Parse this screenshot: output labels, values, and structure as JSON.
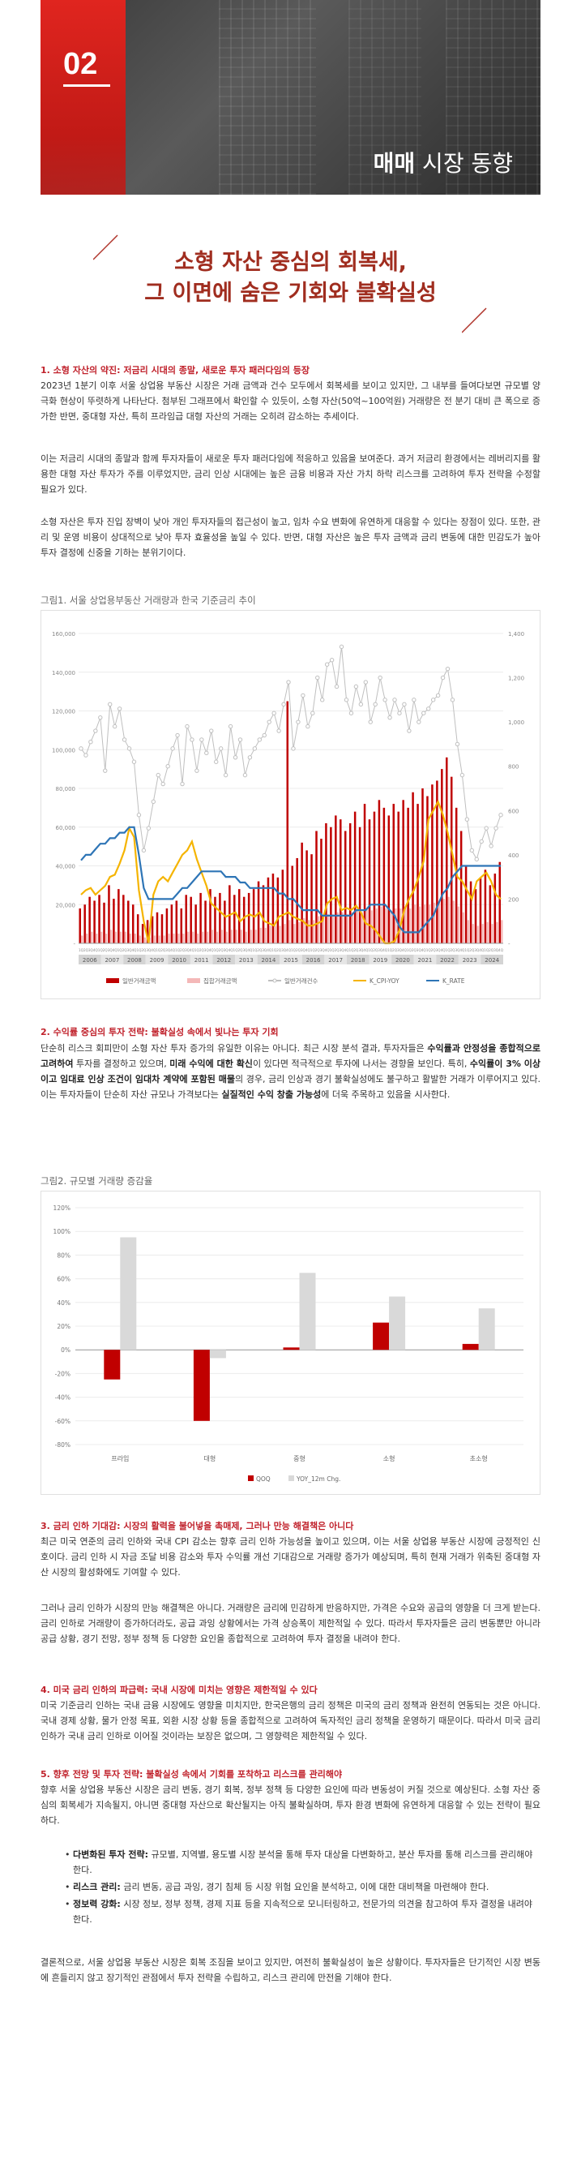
{
  "hero": {
    "number": "02",
    "title_bold": "매매",
    "title_rest": " 시장 동향"
  },
  "title": {
    "line1": "소형 자산 중심의 회복세,",
    "line2": "그 이면에 숨은 기회와 불확실성"
  },
  "s1": {
    "heading": "1. 소형 자산의 약진: 저금리 시대의 종말, 새로운 투자 패러다임의 등장",
    "p1": "2023년 1분기 이후 서울 상업용 부동산 시장은 거래 금액과 건수 모두에서 회복세를 보이고 있지만, 그 내부를 들여다보면 규모별 양극화 현상이 뚜렷하게 나타난다. 첨부된 그래프에서 확인할 수 있듯이, 소형 자산(50억~100억원) 거래량은 전 분기 대비 큰 폭으로 증가한 반면, 중대형 자산, 특히 프라임급 대형 자산의 거래는 오히려 감소하는 추세이다.",
    "p2": "이는 저금리 시대의 종말과 함께 투자자들이 새로운 투자 패러다임에 적응하고 있음을 보여준다. 과거 저금리 환경에서는 레버리지를 활용한 대형 자산 투자가 주를 이루었지만, 금리 인상 시대에는 높은 금융 비용과 자산 가치 하락 리스크를 고려하여 투자 전략을 수정할 필요가 있다.",
    "p3": "소형 자산은 투자 진입 장벽이 낮아 개인 투자자들의 접근성이 높고, 임차 수요 변화에 유연하게 대응할 수 있다는 장점이 있다. 또한, 관리 및 운영 비용이 상대적으로 낮아 투자 효율성을 높일 수 있다. 반면, 대형 자산은 높은 투자 금액과 금리 변동에 대한 민감도가 높아 투자 결정에 신중을 기하는 분위기이다."
  },
  "fig1": {
    "caption": "그림1. 서울 상업용부동산 거래량과 한국 기준금리 추이"
  },
  "s2": {
    "heading": "2. 수익률 중심의 투자 전략: 불확실성 속에서 빛나는 투자 기회",
    "p1a": "단순히 리스크 회피만이 소형 자산 투자 증가의 유일한 이유는 아니다. 최근 시장 분석 결과, 투자자들은 ",
    "p1b": "수익률과 안정성을 종합적으로 고려하여",
    "p1c": " 투자를 결정하고 있으며, ",
    "p1d": "미래 수익에 대한 확신",
    "p1e": "이 있다면 적극적으로 투자에 나서는 경향을 보인다. 특히, ",
    "p1f": "수익률이 3% 이상이고 임대료 인상 조건이 임대차 계약에 포함된 매물",
    "p1g": "의 경우, 금리 인상과 경기 불확실성에도 불구하고 활발한 거래가 이루어지고 있다. 이는 투자자들이 단순히 자산 규모나 가격보다는 ",
    "p1h": "실질적인 수익 창출 가능성",
    "p1i": "에 더욱 주목하고 있음을 시사한다."
  },
  "fig2": {
    "caption": "그림2. 규모별 거래량 증감율"
  },
  "s3": {
    "heading": "3. 금리 인하 기대감: 시장의 활력을 불어넣을 촉매제, 그러나 만능 해결책은 아니다",
    "p1": "최근 미국 연준의 금리 인하와 국내 CPI 감소는 향후 금리 인하 가능성을 높이고 있으며, 이는 서울 상업용 부동산 시장에 긍정적인 신호이다. 금리 인하 시 자금 조달 비용 감소와 투자 수익률 개선 기대감으로 거래량 증가가 예상되며, 특히 현재 거래가 위축된 중대형 자산 시장의 활성화에도 기여할 수 있다.",
    "p2": "그러나 금리 인하가 시장의 만능 해결책은 아니다. 거래량은 금리에 민감하게 반응하지만, 가격은 수요와 공급의 영향을 더 크게 받는다. 금리 인하로 거래량이 증가하더라도, 공급 과잉 상황에서는 가격 상승폭이 제한적일 수 있다. 따라서 투자자들은 금리 변동뿐만 아니라 공급 상황, 경기 전망, 정부 정책 등 다양한 요인을 종합적으로 고려하여 투자 결정을 내려야 한다."
  },
  "s4": {
    "heading": "4. 미국 금리 인하의 파급력: 국내 시장에 미치는 영향은 제한적일 수 있다",
    "p1": "미국 기준금리 인하는 국내 금융 시장에도 영향을 미치지만, 한국은행의 금리 정책은 미국의 금리 정책과 완전히 연동되는 것은 아니다. 국내 경제 상황, 물가 안정 목표, 외환 시장 상황 등을 종합적으로 고려하여 독자적인 금리 정책을 운영하기 때문이다. 따라서 미국 금리 인하가 국내 금리 인하로 이어질 것이라는 보장은 없으며, 그 영향력은 제한적일 수 있다."
  },
  "s5": {
    "heading": "5. 향후 전망 및 투자 전략: 불확실성 속에서 기회를 포착하고 리스크를 관리해야",
    "p1": "향후 서울 상업용 부동산 시장은 금리 변동, 경기 회복, 정부 정책 등 다양한 요인에 따라 변동성이 커질 것으로 예상된다. 소형 자산 중심의 회복세가 지속될지, 아니면 중대형 자산으로 확산될지는 아직 불확실하며, 투자 환경 변화에 유연하게 대응할 수 있는 전략이 필요하다.",
    "bullets": [
      {
        "k": "다변화된 투자 전략:",
        "t": " 규모별, 지역별, 용도별 시장 분석을 통해 투자 대상을 다변화하고, 분산 투자를 통해 리스크를 관리해야 한다."
      },
      {
        "k": "리스크 관리:",
        "t": " 금리 변동, 공급 과잉, 경기 침체 등 시장 위험 요인을 분석하고, 이에 대한 대비책을 마련해야 한다."
      },
      {
        "k": "정보력 강화:",
        "t": " 시장 정보, 정부 정책, 경제 지표 등을 지속적으로 모니터링하고, 전문가의 의견을 참고하여 투자 결정을 내려야 한다."
      }
    ],
    "p2": "결론적으로, 서울 상업용 부동산 시장은 회복 조짐을 보이고 있지만, 여전히 불확실성이 높은 상황이다. 투자자들은 단기적인 시장 변동에 흔들리지 않고 장기적인 관점에서 투자 전략을 수립하고, 리스크 관리에 만전을 기해야 한다."
  },
  "chart_data": [
    {
      "type": "bar+line",
      "title": "그림1. 서울 상업용부동산 거래량과 한국 기준금리 추이",
      "y_left": {
        "range": [
          0,
          160000
        ],
        "ticks": [
          "-",
          "20,000",
          "40,000",
          "60,000",
          "80,000",
          "100,000",
          "120,000",
          "140,000",
          "160,000"
        ]
      },
      "y_right": {
        "range": [
          0,
          1400
        ],
        "ticks": [
          "-",
          "200",
          "400",
          "600",
          "800",
          "1,000",
          "1,200",
          "1,400"
        ]
      },
      "years": [
        "2006",
        "2007",
        "2008",
        "2009",
        "2010",
        "2011",
        "2012",
        "2013",
        "2014",
        "2015",
        "2016",
        "2017",
        "2018",
        "2019",
        "2020",
        "2021",
        "2022",
        "2023",
        "2024"
      ],
      "legend": [
        "일반거래금액",
        "집합거래금액",
        "일반거래건수",
        "K_CPI-YOY",
        "K_RATE"
      ],
      "colors": [
        "#c00000",
        "#f4b8b8",
        "#bfbfbf",
        "#f5b400",
        "#2e75b6"
      ],
      "series": [
        {
          "name": "일반거래금액",
          "kind": "bar",
          "values": [
            18000,
            20000,
            24000,
            22000,
            25000,
            21000,
            30000,
            23000,
            28000,
            25000,
            22000,
            20000,
            15000,
            10000,
            12000,
            14000,
            16000,
            15000,
            18000,
            20000,
            22000,
            18000,
            25000,
            24000,
            20000,
            26000,
            22000,
            28000,
            24000,
            26000,
            22000,
            30000,
            25000,
            28000,
            24000,
            26000,
            28000,
            32000,
            30000,
            34000,
            36000,
            34000,
            38000,
            125000,
            40000,
            44000,
            52000,
            48000,
            46000,
            58000,
            54000,
            62000,
            60000,
            66000,
            64000,
            58000,
            62000,
            68000,
            60000,
            72000,
            64000,
            68000,
            74000,
            70000,
            66000,
            72000,
            68000,
            74000,
            70000,
            78000,
            72000,
            80000,
            76000,
            82000,
            84000,
            90000,
            96000,
            86000,
            70000,
            58000,
            40000,
            32000,
            28000,
            34000,
            38000,
            30000,
            36000,
            42000
          ]
        },
        {
          "name": "집합거래금액",
          "kind": "bar",
          "values": [
            4000,
            5000,
            6000,
            5000,
            6000,
            5000,
            7000,
            6000,
            6000,
            6000,
            5000,
            5000,
            4000,
            3000,
            3000,
            4000,
            4000,
            4000,
            5000,
            5000,
            5000,
            5000,
            6000,
            6000,
            5000,
            6000,
            6000,
            7000,
            6000,
            7000,
            6000,
            7000,
            7000,
            7000,
            6000,
            7000,
            7000,
            8000,
            8000,
            9000,
            9000,
            9000,
            10000,
            12000,
            10000,
            11000,
            13000,
            12000,
            12000,
            14000,
            14000,
            15000,
            15000,
            16000,
            16000,
            15000,
            16000,
            17000,
            16000,
            18000,
            17000,
            18000,
            19000,
            18000,
            17000,
            18000,
            18000,
            19000,
            18000,
            20000,
            19000,
            20000,
            20000,
            21000,
            22000,
            23000,
            24000,
            22000,
            19000,
            16000,
            12000,
            10000,
            9000,
            10000,
            11000,
            10000,
            11000,
            12000
          ]
        },
        {
          "name": "일반거래건수",
          "kind": "line-marker",
          "axis": "right",
          "values": [
            880,
            850,
            910,
            960,
            1020,
            780,
            1080,
            980,
            1060,
            920,
            880,
            820,
            580,
            420,
            520,
            640,
            760,
            720,
            800,
            880,
            940,
            720,
            980,
            920,
            780,
            920,
            860,
            960,
            820,
            880,
            760,
            980,
            840,
            920,
            760,
            840,
            880,
            920,
            940,
            1000,
            1040,
            960,
            1080,
            1180,
            880,
            1000,
            1120,
            980,
            1040,
            1200,
            1100,
            1260,
            1280,
            1160,
            1340,
            1100,
            1040,
            1160,
            1080,
            1180,
            1000,
            1080,
            1200,
            1100,
            1020,
            1100,
            1040,
            1080,
            960,
            1100,
            1000,
            1040,
            1060,
            1100,
            1120,
            1200,
            1240,
            1100,
            900,
            760,
            560,
            420,
            380,
            460,
            520,
            440,
            520,
            580
          ]
        },
        {
          "name": "K_CPI-YOY",
          "kind": "line",
          "axis": "right",
          "unit": "% x100",
          "values": [
            220,
            240,
            250,
            220,
            240,
            260,
            300,
            310,
            360,
            420,
            520,
            480,
            240,
            100,
            0,
            220,
            280,
            300,
            280,
            320,
            360,
            400,
            420,
            460,
            380,
            320,
            260,
            180,
            160,
            140,
            120,
            130,
            140,
            100,
            120,
            130,
            120,
            140,
            100,
            90,
            80,
            120,
            130,
            140,
            120,
            110,
            100,
            80,
            80,
            90,
            100,
            180,
            200,
            210,
            150,
            160,
            150,
            170,
            140,
            90,
            80,
            60,
            30,
            0,
            0,
            10,
            60,
            150,
            200,
            240,
            300,
            370,
            560,
            600,
            640,
            580,
            500,
            400,
            300,
            280,
            240,
            200,
            280,
            300,
            320,
            280,
            220,
            200
          ]
        },
        {
          "name": "K_RATE",
          "kind": "line",
          "axis": "right",
          "unit": "% x100",
          "values": [
            375,
            400,
            400,
            425,
            450,
            450,
            475,
            475,
            500,
            500,
            525,
            525,
            400,
            250,
            200,
            200,
            200,
            200,
            200,
            200,
            225,
            250,
            250,
            275,
            300,
            325,
            325,
            325,
            325,
            325,
            300,
            300,
            300,
            275,
            275,
            250,
            250,
            250,
            250,
            250,
            250,
            225,
            225,
            200,
            200,
            175,
            150,
            150,
            150,
            150,
            125,
            125,
            125,
            125,
            125,
            125,
            125,
            150,
            150,
            150,
            175,
            175,
            175,
            175,
            150,
            125,
            75,
            50,
            50,
            50,
            50,
            75,
            100,
            125,
            175,
            225,
            250,
            300,
            325,
            350,
            350,
            350,
            350,
            350,
            350,
            350,
            350,
            350
          ]
        }
      ]
    },
    {
      "type": "bar",
      "title": "그림2. 규모별 거래량 증감율",
      "categories": [
        "프라임",
        "대형",
        "중형",
        "소형",
        "초소형"
      ],
      "ylim": [
        -0.8,
        1.2
      ],
      "y_ticks": [
        "120%",
        "100%",
        "80%",
        "60%",
        "40%",
        "20%",
        "0%",
        "-20%",
        "-40%",
        "-60%",
        "-80%"
      ],
      "legend": [
        "QOQ",
        "YOY_12m Chg."
      ],
      "colors": [
        "#c00000",
        "#d9d9d9"
      ],
      "series": [
        {
          "name": "QOQ",
          "values": [
            -0.25,
            -0.6,
            0.02,
            0.23,
            0.05
          ]
        },
        {
          "name": "YOY_12m Chg.",
          "values": [
            0.95,
            -0.07,
            0.65,
            0.45,
            0.35
          ]
        }
      ]
    }
  ]
}
